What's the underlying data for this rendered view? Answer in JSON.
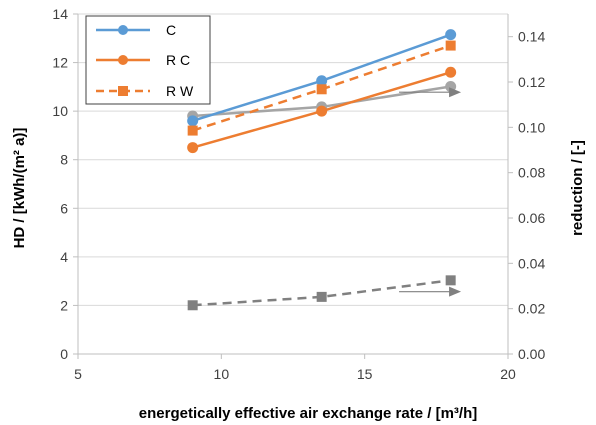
{
  "chart_data": {
    "type": "line",
    "xlabel": "energetically effective air exchange rate   / [m³/h]",
    "ylabel": "HD / [kWh/(m² a)]",
    "y2label": "reduction / [-]",
    "xlim": [
      5,
      20
    ],
    "ylim": [
      0,
      14
    ],
    "y2lim": [
      0,
      0.15
    ],
    "xticks": [
      "5",
      "10",
      "15",
      "20"
    ],
    "yticks": [
      "0",
      "2",
      "4",
      "6",
      "8",
      "10",
      "12",
      "14"
    ],
    "y2ticks": [
      "0.00",
      "0.02",
      "0.04",
      "0.06",
      "0.08",
      "0.10",
      "0.12",
      "0.14"
    ],
    "grid": "horizontal",
    "legend_position": "top-left",
    "series": [
      {
        "name": "C",
        "axis": "left",
        "color": "#5B9BD5",
        "style": "solid",
        "marker": "circle",
        "x": [
          9,
          13.5,
          18
        ],
        "y": [
          9.6,
          11.25,
          13.15
        ]
      },
      {
        "name": "R C",
        "axis": "left",
        "color": "#ED7D31",
        "style": "solid",
        "marker": "circle",
        "x": [
          9,
          13.5,
          18
        ],
        "y": [
          8.5,
          10.0,
          11.6
        ]
      },
      {
        "name": "R W",
        "axis": "left",
        "color": "#ED7D31",
        "style": "dashed",
        "marker": "square",
        "x": [
          9,
          13.5,
          18
        ],
        "y": [
          9.2,
          10.9,
          12.7
        ]
      },
      {
        "name": "",
        "axis": "right",
        "color": "#A5A5A5",
        "style": "solid",
        "marker": "circle",
        "x": [
          9,
          13.5,
          18
        ],
        "y": [
          0.105,
          0.109,
          0.118
        ]
      },
      {
        "name": "",
        "axis": "right",
        "color": "#808080",
        "style": "dashed",
        "marker": "square",
        "x": [
          9,
          13.5,
          18
        ],
        "y": [
          0.0215,
          0.0252,
          0.0325
        ]
      }
    ],
    "annotations": [
      {
        "type": "arrow",
        "direction": "right",
        "points_to_axis": "right",
        "near": [
          16.2,
          0.1155
        ]
      },
      {
        "type": "arrow",
        "direction": "right",
        "points_to_axis": "right",
        "near": [
          16.2,
          0.0275
        ]
      }
    ]
  }
}
